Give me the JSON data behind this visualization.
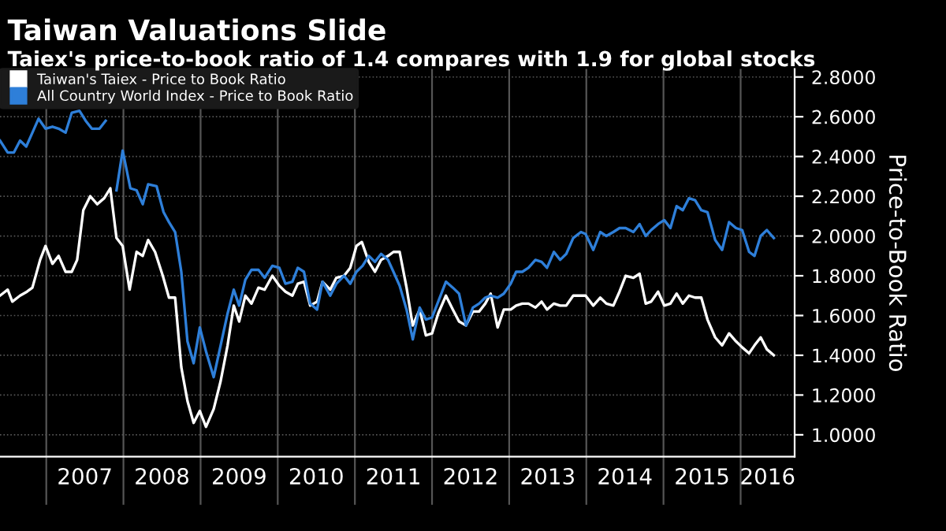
{
  "chart_data": {
    "type": "line",
    "title": "Taiwan Valuations Slide",
    "subtitle": "Taiex's price-to-book ratio of 1.4 compares with 1.9 for global stocks",
    "ylabel": "Price-to-Book Ratio",
    "series": [
      {
        "name": "Taiwan's Taiex - Price to Book Ratio",
        "color": "#ffffff",
        "x": [
          2006.4,
          2006.5,
          2006.56,
          2006.66,
          2006.75,
          2006.82,
          2006.92,
          2006.99,
          2007.08,
          2007.16,
          2007.25,
          2007.33,
          2007.4,
          2007.48,
          2007.57,
          2007.66,
          2007.75,
          2007.83,
          2007.91,
          2007.99,
          2008.08,
          2008.17,
          2008.25,
          2008.32,
          2008.41,
          2008.51,
          2008.59,
          2008.67,
          2008.75,
          2008.83,
          2008.91,
          2008.99,
          2009.07,
          2009.17,
          2009.26,
          2009.35,
          2009.43,
          2009.5,
          2009.58,
          2009.66,
          2009.75,
          2009.83,
          2009.93,
          2010.02,
          2010.1,
          2010.19,
          2010.26,
          2010.34,
          2010.42,
          2010.51,
          2010.58,
          2010.68,
          2010.76,
          2010.86,
          2010.94,
          2011.02,
          2011.09,
          2011.18,
          2011.26,
          2011.34,
          2011.43,
          2011.5,
          2011.58,
          2011.67,
          2011.75,
          2011.84,
          2011.92,
          2012.0,
          2012.08,
          2012.18,
          2012.27,
          2012.35,
          2012.44,
          2012.53,
          2012.61,
          2012.69,
          2012.76,
          2012.85,
          2012.93,
          2013.02,
          2013.09,
          2013.17,
          2013.25,
          2013.34,
          2013.42,
          2013.49,
          2013.58,
          2013.66,
          2013.74,
          2013.83,
          2013.93,
          2013.99,
          2014.09,
          2014.18,
          2014.26,
          2014.35,
          2014.43,
          2014.51,
          2014.61,
          2014.69,
          2014.77,
          2014.84,
          2014.93,
          2015.01,
          2015.09,
          2015.17,
          2015.25,
          2015.33,
          2015.41,
          2015.49,
          2015.57,
          2015.67,
          2015.76,
          2015.85,
          2015.94,
          2016.02,
          2016.11,
          2016.18,
          2016.26,
          2016.34,
          2016.43
        ],
        "values": [
          1.7,
          1.73,
          1.67,
          1.7,
          1.72,
          1.74,
          1.88,
          1.95,
          1.86,
          1.9,
          1.82,
          1.82,
          1.88,
          2.13,
          2.2,
          2.16,
          2.19,
          2.24,
          1.99,
          1.95,
          1.73,
          1.92,
          1.9,
          1.98,
          1.92,
          1.8,
          1.69,
          1.69,
          1.34,
          1.17,
          1.06,
          1.12,
          1.04,
          1.13,
          1.27,
          1.45,
          1.65,
          1.57,
          1.7,
          1.66,
          1.74,
          1.73,
          1.8,
          1.75,
          1.72,
          1.7,
          1.76,
          1.77,
          1.65,
          1.67,
          1.77,
          1.73,
          1.79,
          1.8,
          1.84,
          1.95,
          1.97,
          1.87,
          1.82,
          1.88,
          1.9,
          1.92,
          1.92,
          1.74,
          1.55,
          1.63,
          1.5,
          1.51,
          1.61,
          1.7,
          1.63,
          1.57,
          1.55,
          1.62,
          1.62,
          1.66,
          1.71,
          1.54,
          1.63,
          1.63,
          1.65,
          1.66,
          1.66,
          1.64,
          1.67,
          1.63,
          1.66,
          1.65,
          1.65,
          1.7,
          1.7,
          1.7,
          1.65,
          1.69,
          1.66,
          1.65,
          1.72,
          1.8,
          1.79,
          1.81,
          1.66,
          1.67,
          1.72,
          1.65,
          1.66,
          1.71,
          1.66,
          1.7,
          1.69,
          1.69,
          1.58,
          1.49,
          1.45,
          1.51,
          1.47,
          1.44,
          1.41,
          1.45,
          1.49,
          1.43,
          1.4
        ]
      },
      {
        "name": "All Country World Index - Price to Book Ratio",
        "color": "#2e7fd9",
        "x": [
          2006.4,
          2006.5,
          2006.58,
          2006.66,
          2006.74,
          2006.82,
          2006.9,
          2006.99,
          2007.08,
          2007.16,
          2007.25,
          2007.33,
          2007.43,
          2007.51,
          2007.59,
          2007.69,
          2007.77,
          2007.85,
          2007.91,
          2007.99,
          2008.09,
          2008.17,
          2008.25,
          2008.32,
          2008.43,
          2008.52,
          2008.59,
          2008.67,
          2008.75,
          2008.83,
          2008.91,
          2008.99,
          2009.07,
          2009.17,
          2009.26,
          2009.35,
          2009.43,
          2009.5,
          2009.58,
          2009.66,
          2009.75,
          2009.83,
          2009.93,
          2010.02,
          2010.1,
          2010.19,
          2010.26,
          2010.34,
          2010.42,
          2010.51,
          2010.58,
          2010.68,
          2010.76,
          2010.86,
          2010.94,
          2011.02,
          2011.1,
          2011.18,
          2011.26,
          2011.34,
          2011.43,
          2011.5,
          2011.58,
          2011.67,
          2011.75,
          2011.84,
          2011.92,
          2012.0,
          2012.08,
          2012.18,
          2012.27,
          2012.35,
          2012.44,
          2012.53,
          2012.61,
          2012.69,
          2012.76,
          2012.85,
          2012.93,
          2013.02,
          2013.09,
          2013.17,
          2013.25,
          2013.34,
          2013.42,
          2013.49,
          2013.58,
          2013.66,
          2013.74,
          2013.83,
          2013.93,
          2013.99,
          2014.09,
          2014.18,
          2014.26,
          2014.35,
          2014.43,
          2014.51,
          2014.61,
          2014.69,
          2014.77,
          2014.84,
          2014.93,
          2015.01,
          2015.09,
          2015.17,
          2015.25,
          2015.33,
          2015.41,
          2015.49,
          2015.57,
          2015.67,
          2015.76,
          2015.85,
          2015.94,
          2016.02,
          2016.11,
          2016.18,
          2016.26,
          2016.34,
          2016.43
        ],
        "values": [
          2.48,
          2.42,
          2.42,
          2.48,
          2.45,
          2.52,
          2.59,
          2.54,
          2.55,
          2.54,
          2.52,
          2.62,
          2.63,
          2.58,
          2.54,
          2.54,
          2.58,
          null,
          2.23,
          2.43,
          2.24,
          2.23,
          2.16,
          2.26,
          2.25,
          2.12,
          2.07,
          2.02,
          1.82,
          1.47,
          1.36,
          1.54,
          1.42,
          1.29,
          1.45,
          1.61,
          1.73,
          1.65,
          1.78,
          1.83,
          1.83,
          1.79,
          1.85,
          1.84,
          1.76,
          1.77,
          1.84,
          1.82,
          1.66,
          1.63,
          1.77,
          1.7,
          1.76,
          1.8,
          1.76,
          1.82,
          1.85,
          1.9,
          1.87,
          1.91,
          1.88,
          1.82,
          1.75,
          1.63,
          1.48,
          1.64,
          1.58,
          1.59,
          1.67,
          1.77,
          1.74,
          1.71,
          1.55,
          1.64,
          1.66,
          1.69,
          1.7,
          1.69,
          1.71,
          1.76,
          1.82,
          1.82,
          1.84,
          1.88,
          1.87,
          1.84,
          1.92,
          1.88,
          1.91,
          1.99,
          2.02,
          2.01,
          1.93,
          2.02,
          2.0,
          2.02,
          2.04,
          2.04,
          2.02,
          2.06,
          2.0,
          2.03,
          2.06,
          2.08,
          2.04,
          2.15,
          2.13,
          2.19,
          2.18,
          2.13,
          2.12,
          1.98,
          1.93,
          2.07,
          2.04,
          2.03,
          1.92,
          1.9,
          2.0,
          2.03,
          1.99
        ]
      }
    ],
    "xlim": [
      2006.4,
      2016.7
    ],
    "xticks": [
      {
        "value": 2007,
        "label": null
      },
      {
        "value": 2008,
        "label": null
      },
      {
        "value": 2009,
        "label": null
      },
      {
        "value": 2010,
        "label": null
      },
      {
        "value": 2011,
        "label": null
      },
      {
        "value": 2012,
        "label": null
      },
      {
        "value": 2013,
        "label": null
      },
      {
        "value": 2014,
        "label": null
      },
      {
        "value": 2015,
        "label": null
      },
      {
        "value": 2016,
        "label": null
      },
      {
        "value": 2007.5,
        "label": "2007"
      },
      {
        "value": 2008.5,
        "label": "2008"
      },
      {
        "value": 2009.5,
        "label": "2009"
      },
      {
        "value": 2010.5,
        "label": "2010"
      },
      {
        "value": 2011.5,
        "label": "2011"
      },
      {
        "value": 2012.5,
        "label": "2012"
      },
      {
        "value": 2013.5,
        "label": "2013"
      },
      {
        "value": 2014.5,
        "label": "2014"
      },
      {
        "value": 2015.5,
        "label": "2015"
      },
      {
        "value": 2016.35,
        "label": "2016"
      }
    ],
    "ylim": [
      0.89,
      2.84
    ],
    "yticks": [
      {
        "value": 1.0,
        "label": "1.0000"
      },
      {
        "value": 1.2,
        "label": "1.2000"
      },
      {
        "value": 1.4,
        "label": "1.4000"
      },
      {
        "value": 1.6,
        "label": "1.6000"
      },
      {
        "value": 1.8,
        "label": "1.8000"
      },
      {
        "value": 2.0,
        "label": "2.0000"
      },
      {
        "value": 2.2,
        "label": "2.2000"
      },
      {
        "value": 2.4,
        "label": "2.4000"
      },
      {
        "value": 2.6,
        "label": "2.6000"
      },
      {
        "value": 2.8,
        "label": "2.8000"
      }
    ],
    "grid": true,
    "legend": "top left",
    "line_style": "solid",
    "marker": "none"
  }
}
